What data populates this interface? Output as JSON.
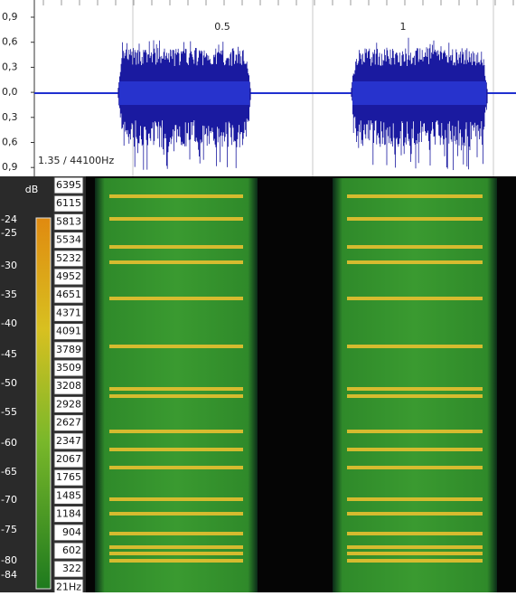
{
  "waveform": {
    "amplitude_labels": [
      "0,9",
      "0,6",
      "0,3",
      "0,0",
      "0,3",
      "0,6",
      "0,9"
    ],
    "time_labels": [
      "0.5",
      "1"
    ],
    "status": "1.35 / 44100Hz"
  },
  "spectrogram": {
    "db_title": "dB",
    "db_labels": [
      "-24",
      "-25",
      "-30",
      "-35",
      "-40",
      "-45",
      "-50",
      "-55",
      "-60",
      "-65",
      "-70",
      "-75",
      "-80",
      "-84"
    ],
    "frequency_labels": [
      "6395",
      "6115",
      "5813",
      "5534",
      "5232",
      "4952",
      "4651",
      "4371",
      "4091",
      "3789",
      "3509",
      "3208",
      "2928",
      "2627",
      "2347",
      "2067",
      "1765",
      "1485",
      "1184",
      "904",
      "602",
      "322",
      "21Hz"
    ]
  }
}
